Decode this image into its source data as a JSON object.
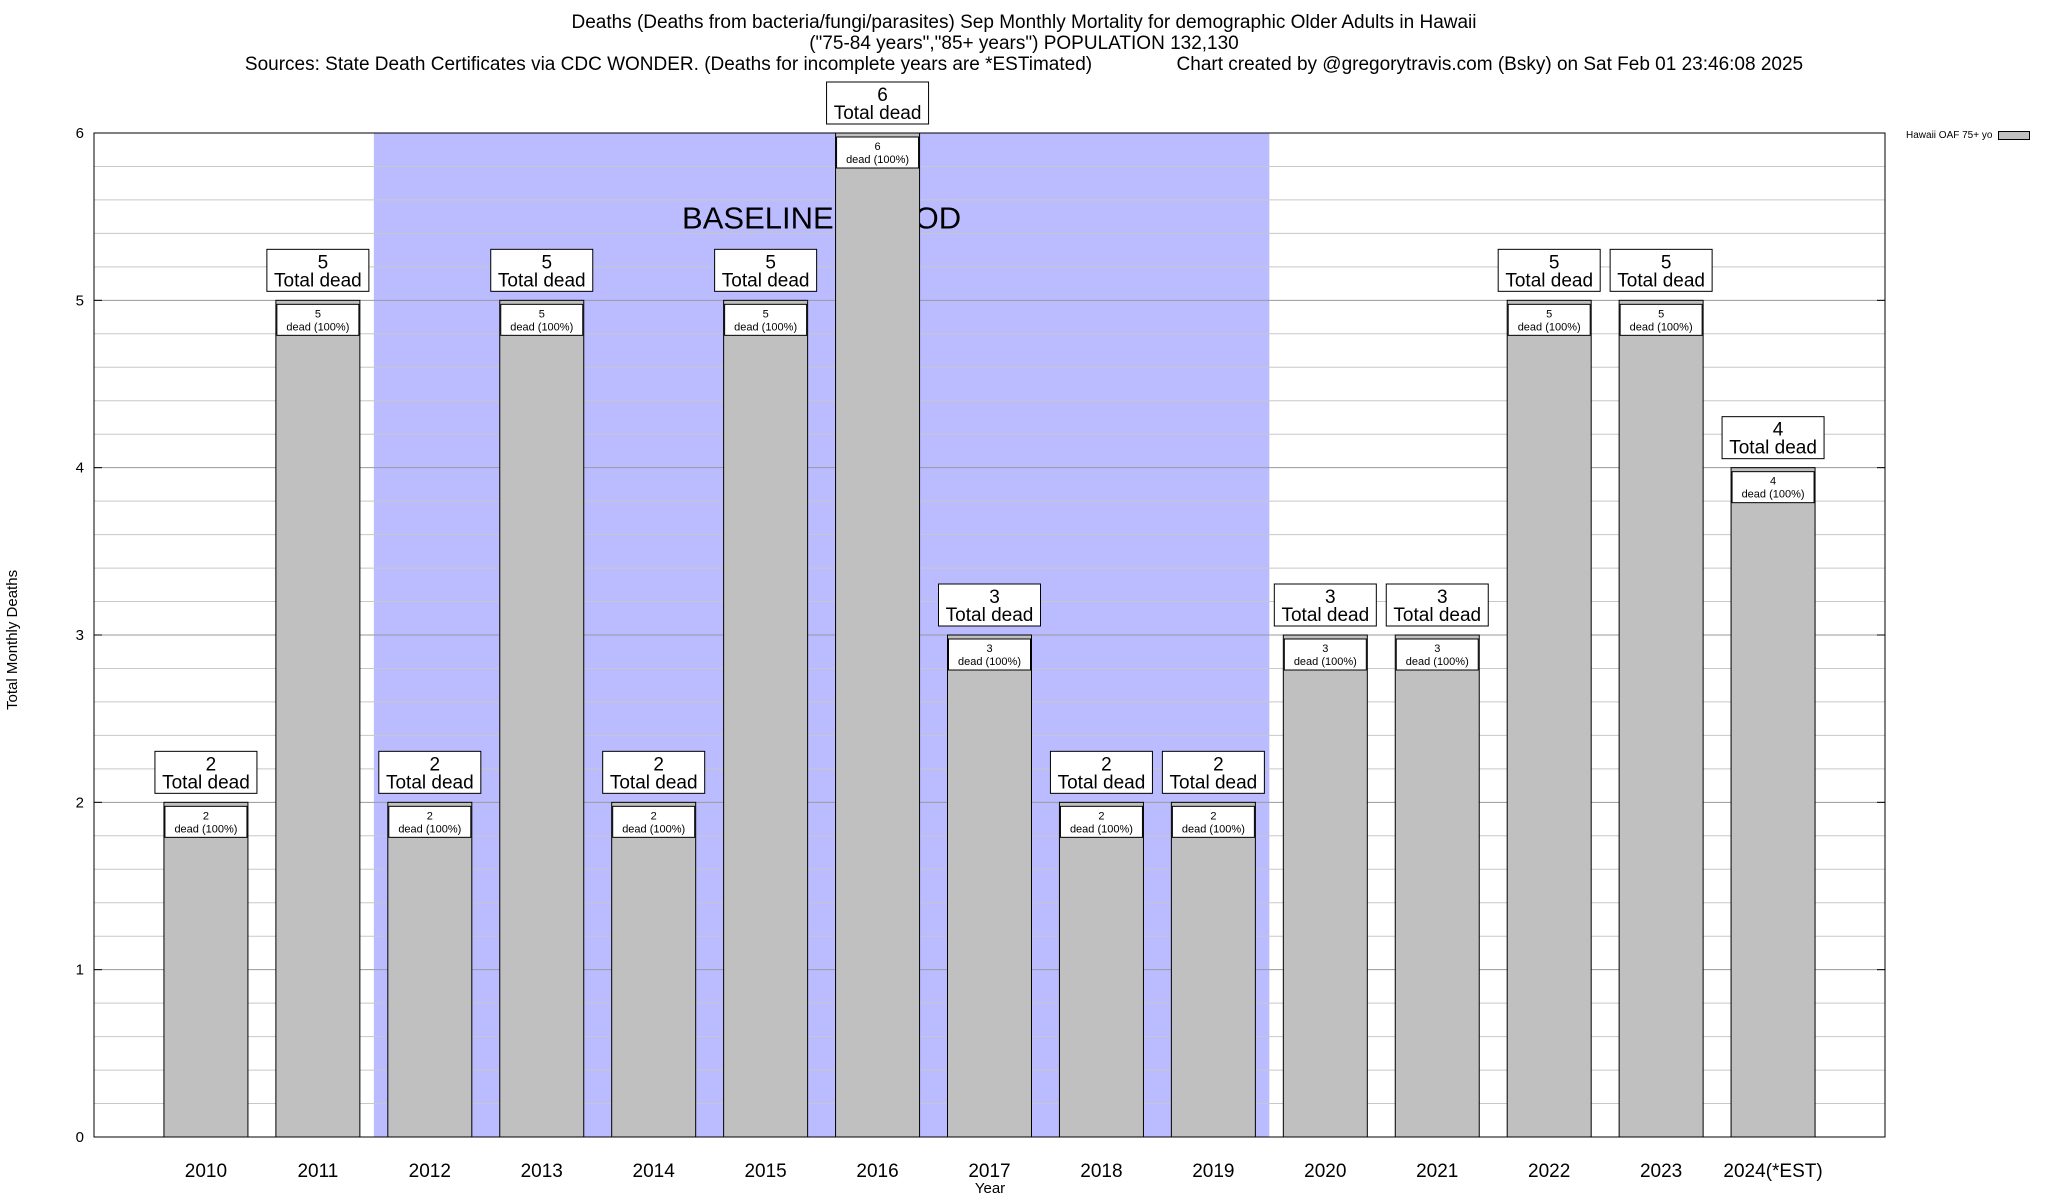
{
  "chart_data": {
    "type": "bar",
    "title_lines": [
      "Deaths (Deaths from bacteria/fungi/parasites) Sep Monthly Mortality for demographic Older Adults in Hawaii",
      "(\"75-84 years\",\"85+ years\") POPULATION 132,130",
      "Sources: State Death Certificates via CDC WONDER. (Deaths for incomplete years are *ESTimated)                Chart created by @gregorytravis.com (Bsky) on Sat Feb 01 23:46:08 2025"
    ],
    "xlabel": "Year",
    "ylabel": "Total Monthly Deaths",
    "ylim": [
      0,
      6
    ],
    "y_ticks": [
      0,
      1,
      2,
      3,
      4,
      5,
      6
    ],
    "grid": true,
    "categories": [
      "2010",
      "2011",
      "2012",
      "2013",
      "2014",
      "2015",
      "2016",
      "2017",
      "2018",
      "2019",
      "2020",
      "2021",
      "2022",
      "2023",
      "2024(*EST)"
    ],
    "series": [
      {
        "name": "Hawaii OAF 75+ yo",
        "values": [
          2,
          5,
          2,
          5,
          2,
          5,
          6,
          3,
          2,
          2,
          3,
          3,
          5,
          5,
          4
        ]
      }
    ],
    "total_label_suffix": "Total dead",
    "inner_label_text": "dead (100%)",
    "baseline": {
      "label": "BASELINE PERIOD",
      "from": "2012",
      "to": "2019"
    },
    "legend_position": "top-right",
    "colors": {
      "bar": "#c0c0c0",
      "baseline": "#bbbbff",
      "grid": "#c8c8c8"
    }
  }
}
